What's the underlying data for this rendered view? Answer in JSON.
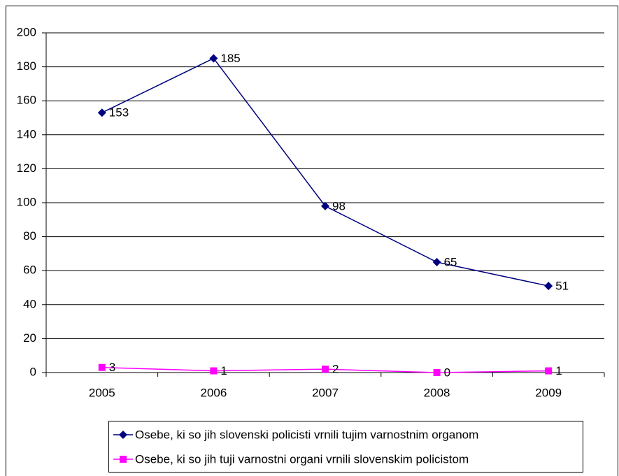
{
  "chart_data": {
    "type": "line",
    "categories": [
      "2005",
      "2006",
      "2007",
      "2008",
      "2009"
    ],
    "series": [
      {
        "name": "Osebe, ki so jih slovenski policisti vrnili tujim varnostnim organom",
        "color": "#000080",
        "marker": "diamond",
        "values": [
          153,
          185,
          98,
          65,
          51
        ]
      },
      {
        "name": "Osebe, ki so jih tuji varnostni organi vrnili slovenskim policistom",
        "color": "#ff00ff",
        "marker": "square",
        "values": [
          3,
          1,
          2,
          0,
          1
        ]
      }
    ],
    "ylim": [
      0,
      200
    ],
    "yticks": [
      0,
      20,
      40,
      60,
      80,
      100,
      120,
      140,
      160,
      180,
      200
    ],
    "grid": true,
    "legend": "bottom"
  }
}
